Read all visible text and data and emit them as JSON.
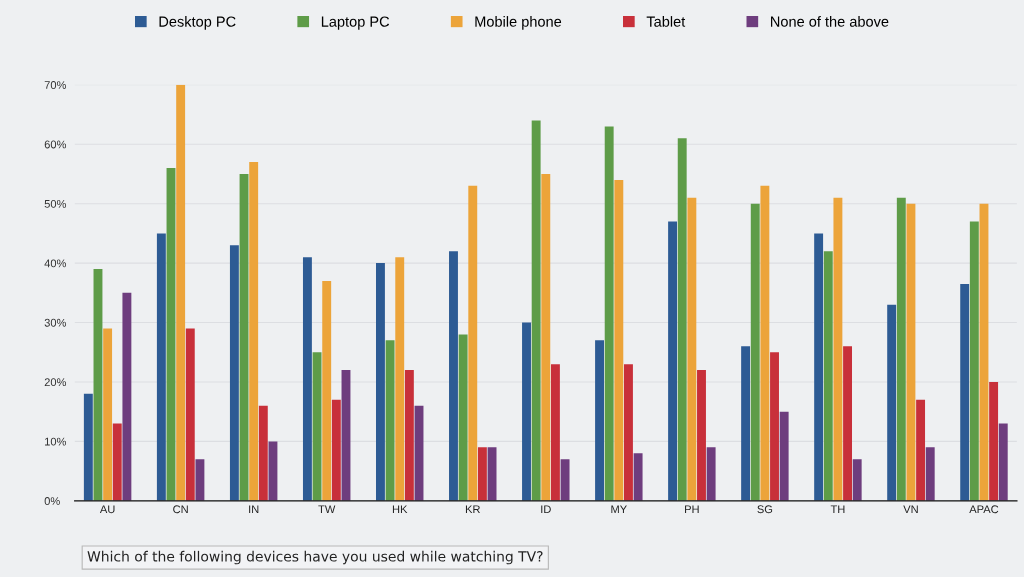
{
  "chart_data": {
    "type": "bar",
    "categories": [
      "AU",
      "CN",
      "IN",
      "TW",
      "HK",
      "KR",
      "ID",
      "MY",
      "PH",
      "SG",
      "TH",
      "VN",
      "APAC"
    ],
    "series": [
      {
        "name": "Desktop PC",
        "color": "#2d5b94",
        "values": [
          18,
          45,
          43,
          41,
          40,
          42,
          30,
          27,
          47,
          26,
          45,
          33,
          36.5
        ]
      },
      {
        "name": "Laptop PC",
        "color": "#5e9c48",
        "values": [
          39,
          56,
          55,
          25,
          27,
          28,
          64,
          63,
          61,
          50,
          42,
          51,
          47
        ]
      },
      {
        "name": "Mobile phone",
        "color": "#eca43a",
        "values": [
          29,
          70,
          57,
          37,
          41,
          53,
          55,
          54,
          51,
          53,
          51,
          50,
          50
        ]
      },
      {
        "name": "Tablet",
        "color": "#c8303a",
        "values": [
          13,
          29,
          16,
          17,
          22,
          9,
          23,
          23,
          22,
          25,
          26,
          17,
          20
        ]
      },
      {
        "name": "None of the above",
        "color": "#6e3d7e",
        "values": [
          35,
          7,
          10,
          22,
          16,
          9,
          7,
          8,
          9,
          15,
          7,
          9,
          13
        ]
      }
    ],
    "ylim": [
      0,
      70
    ],
    "yticks": [
      {
        "value": 0,
        "label": "0%"
      },
      {
        "value": 10,
        "label": "10%"
      },
      {
        "value": 20,
        "label": "20%"
      },
      {
        "value": 30,
        "label": "30%"
      },
      {
        "value": 40,
        "label": "40%"
      },
      {
        "value": 50,
        "label": "50%"
      },
      {
        "value": 60,
        "label": "60%"
      },
      {
        "value": 70,
        "label": "70%"
      }
    ],
    "grid": "y",
    "legend": "top",
    "annotations": [
      "Which of the following devices have you used while watching TV?"
    ]
  }
}
